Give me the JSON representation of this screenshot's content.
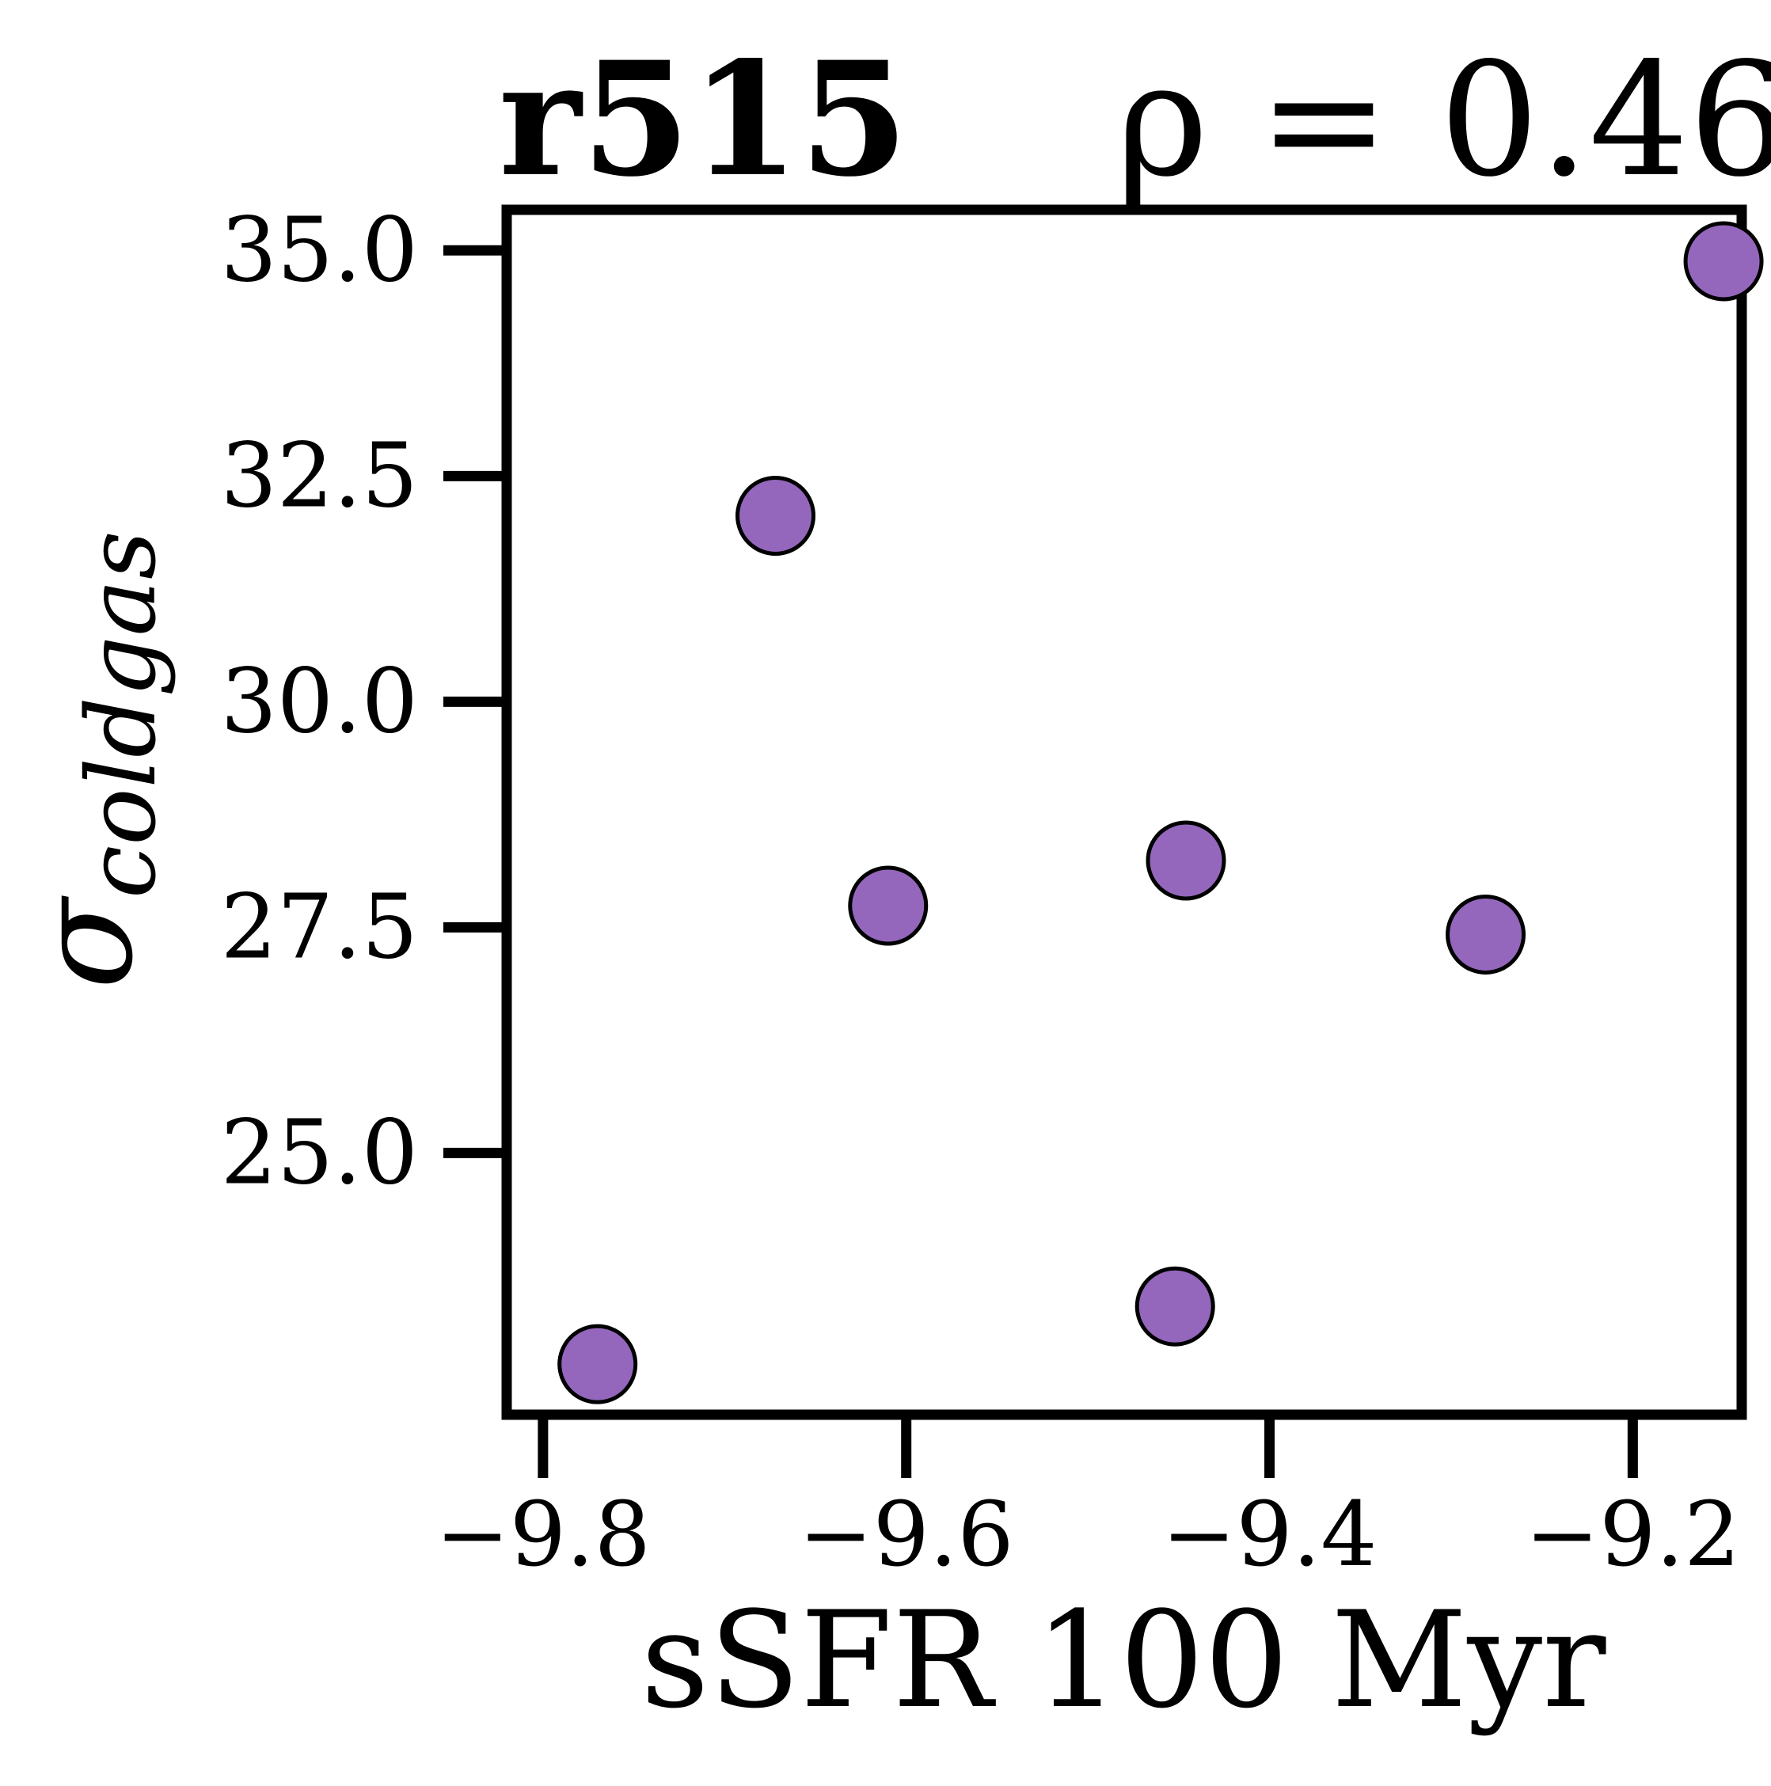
{
  "chart_data": {
    "type": "scatter",
    "title": "r515",
    "annotation": "ρ = 0.46",
    "xlabel": "sSFR 100 Myr",
    "ylabel_base": "σ",
    "ylabel_sub": "coldgas",
    "xlim": [
      -9.82,
      -9.14
    ],
    "ylim": [
      22.1,
      35.45
    ],
    "xticks": [
      -9.8,
      -9.6,
      -9.4,
      -9.2
    ],
    "xtick_labels": [
      "−9.8",
      "−9.6",
      "−9.4",
      "−9.2"
    ],
    "yticks": [
      25.0,
      27.5,
      30.0,
      32.5,
      35.0
    ],
    "ytick_labels": [
      "25.0",
      "27.5",
      "30.0",
      "32.5",
      "35.0"
    ],
    "grid": false,
    "marker_color": "#9467bd",
    "marker_edge": "#000000",
    "points": [
      {
        "x": -9.77,
        "y": 22.66
      },
      {
        "x": -9.672,
        "y": 32.06
      },
      {
        "x": -9.61,
        "y": 27.74
      },
      {
        "x": -9.452,
        "y": 23.3
      },
      {
        "x": -9.446,
        "y": 28.24
      },
      {
        "x": -9.281,
        "y": 27.42
      },
      {
        "x": -9.15,
        "y": 34.88
      }
    ]
  }
}
